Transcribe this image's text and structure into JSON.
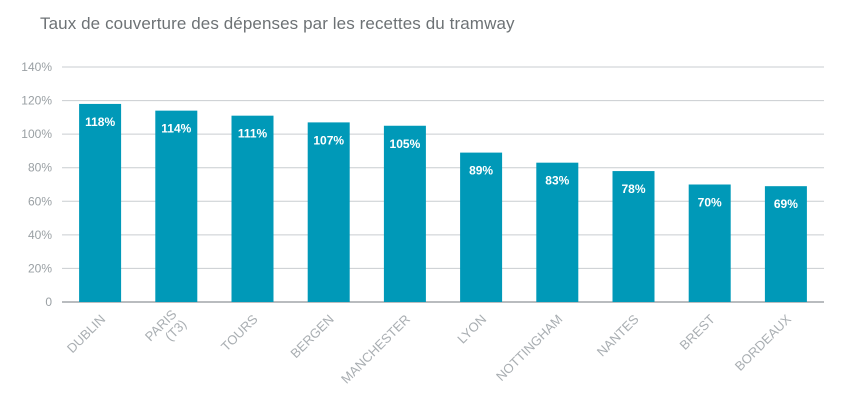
{
  "chart_data": {
    "type": "bar",
    "title": "Taux de couverture des dépenses par les recettes du tramway",
    "xlabel": "",
    "ylabel": "",
    "categories": [
      "DUBLIN",
      "PARIS\n(T3)",
      "TOURS",
      "BERGEN",
      "MANCHESTER",
      "LYON",
      "NOTTINGHAM",
      "NANTES",
      "BREST",
      "BORDEAUX"
    ],
    "values": [
      118,
      114,
      111,
      107,
      105,
      89,
      83,
      78,
      70,
      69
    ],
    "data_labels": [
      "118%",
      "114%",
      "111%",
      "107%",
      "105%",
      "89%",
      "83%",
      "78%",
      "70%",
      "69%"
    ],
    "ylim": [
      0,
      140
    ],
    "yticks": [
      0,
      20,
      40,
      60,
      80,
      100,
      120,
      140
    ],
    "ytick_labels": [
      "0",
      "20%",
      "40%",
      "60%",
      "80%",
      "100%",
      "120%",
      "140%"
    ],
    "grid": true,
    "legend": "none",
    "bar_color": "#0099b8"
  }
}
